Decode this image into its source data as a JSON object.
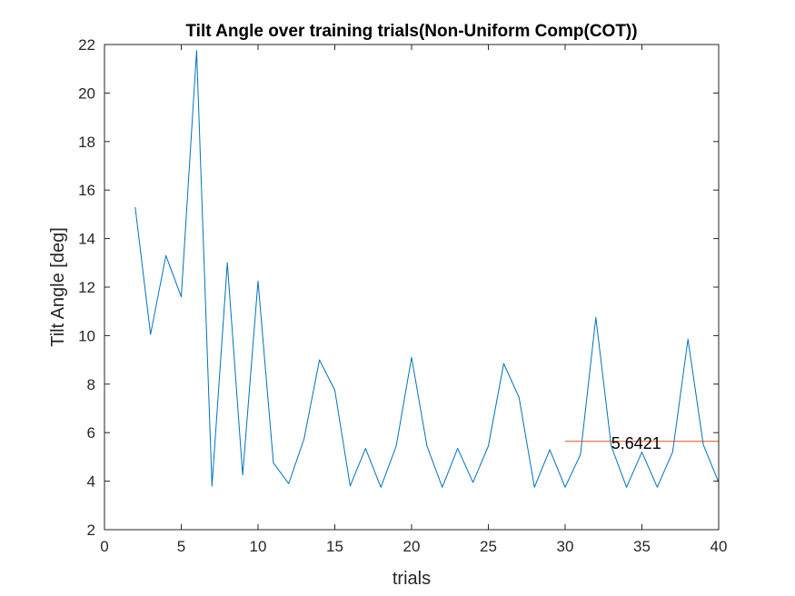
{
  "chart_data": {
    "type": "line",
    "title": "Tilt Angle over training trials(Non-Uniform Comp(COT))",
    "xlabel": "trials",
    "ylabel": "Tilt Angle [deg]",
    "xlim": [
      0,
      40
    ],
    "ylim": [
      2,
      22
    ],
    "xticks": [
      0,
      5,
      10,
      15,
      20,
      25,
      30,
      35,
      40
    ],
    "yticks": [
      2,
      4,
      6,
      8,
      10,
      12,
      14,
      16,
      18,
      20,
      22
    ],
    "grid": false,
    "box": true,
    "series": [
      {
        "color": "#0072BD",
        "x": [
          2,
          3,
          4,
          5,
          6,
          7,
          8,
          9,
          10,
          11,
          12,
          13,
          14,
          15,
          16,
          17,
          18,
          19,
          20,
          21,
          22,
          23,
          24,
          25,
          26,
          27,
          28,
          29,
          30,
          31,
          32,
          33,
          34,
          35,
          36,
          37,
          38,
          39,
          40
        ],
        "y": [
          15.3,
          10.05,
          13.3,
          11.6,
          21.75,
          3.8,
          13.0,
          4.25,
          12.25,
          4.75,
          3.9,
          5.75,
          9.0,
          7.75,
          3.8,
          5.35,
          3.75,
          5.45,
          9.1,
          5.45,
          3.75,
          5.35,
          3.95,
          5.45,
          8.85,
          7.45,
          3.75,
          5.3,
          3.75,
          5.1,
          10.75,
          5.45,
          3.75,
          5.2,
          3.75,
          5.2,
          9.85,
          5.5,
          3.95
        ]
      },
      {
        "color": "#D95319",
        "x": [
          30,
          40
        ],
        "y": [
          5.6421,
          5.6421
        ]
      }
    ],
    "annotations": [
      {
        "text": "5.6421",
        "x": 33,
        "y": 5.6421
      }
    ]
  }
}
